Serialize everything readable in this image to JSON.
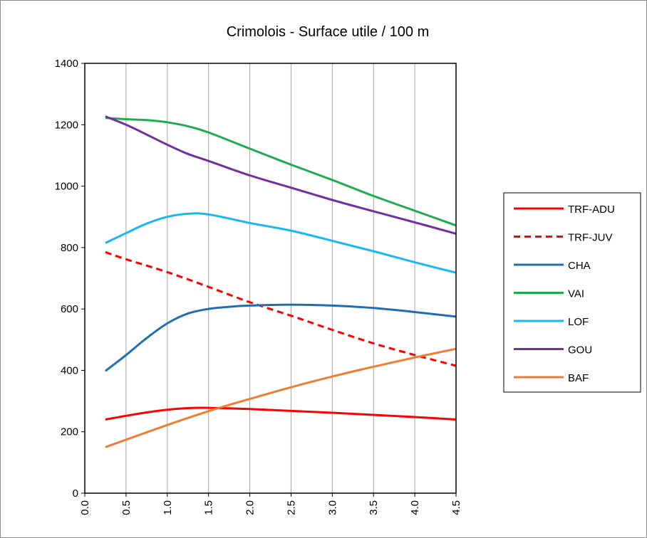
{
  "chart_data": {
    "type": "line",
    "title": "Crimolois - Surface utile / 100 m",
    "xlabel": "",
    "ylabel": "",
    "xlim": [
      0,
      4.5
    ],
    "ylim": [
      0,
      1400
    ],
    "x_ticks": [
      "0.0",
      "0.5",
      "1.0",
      "1.5",
      "2.0",
      "2.5",
      "3.0",
      "3.5",
      "4.0",
      "4.5"
    ],
    "y_ticks": [
      "0",
      "200",
      "400",
      "600",
      "800",
      "1000",
      "1200",
      "1400"
    ],
    "grid": true,
    "legend_position": "right",
    "series": [
      {
        "name": "TRF-ADU",
        "color": "#ff0000",
        "dash": false,
        "x": [
          0.25,
          0.5,
          0.75,
          1.0,
          1.25,
          1.5,
          2.0,
          2.5,
          3.0,
          3.5,
          4.0,
          4.5
        ],
        "y": [
          240,
          252,
          263,
          272,
          277,
          278,
          274,
          268,
          262,
          255,
          248,
          240
        ]
      },
      {
        "name": "TRF-JUV",
        "color": "#ff0000",
        "dash": true,
        "x": [
          0.25,
          0.5,
          1.0,
          1.5,
          2.0,
          2.5,
          3.0,
          3.5,
          4.0,
          4.5
        ],
        "y": [
          785,
          762,
          720,
          672,
          622,
          578,
          532,
          488,
          450,
          415
        ]
      },
      {
        "name": "CHA",
        "color": "#1f6db5",
        "dash": false,
        "x": [
          0.25,
          0.5,
          0.75,
          1.0,
          1.25,
          1.5,
          1.75,
          2.0,
          2.5,
          3.0,
          3.5,
          4.0,
          4.5
        ],
        "y": [
          398,
          450,
          505,
          553,
          585,
          600,
          607,
          611,
          614,
          611,
          603,
          590,
          575
        ]
      },
      {
        "name": "VAI",
        "color": "#1fab50",
        "dash": false,
        "x": [
          0.25,
          0.5,
          0.75,
          1.0,
          1.25,
          1.5,
          2.0,
          2.5,
          3.0,
          3.5,
          4.0,
          4.5
        ],
        "y": [
          1222,
          1218,
          1215,
          1208,
          1195,
          1175,
          1122,
          1070,
          1020,
          968,
          920,
          872
        ]
      },
      {
        "name": "LOF",
        "color": "#19b7ef",
        "dash": false,
        "x": [
          0.25,
          0.5,
          0.75,
          1.0,
          1.25,
          1.5,
          2.0,
          2.5,
          3.0,
          3.5,
          4.0,
          4.5
        ],
        "y": [
          815,
          847,
          878,
          900,
          910,
          908,
          880,
          855,
          822,
          788,
          752,
          718
        ]
      },
      {
        "name": "GOU",
        "color": "#7030a0",
        "dash": false,
        "x": [
          0.25,
          0.5,
          0.75,
          1.0,
          1.25,
          1.5,
          2.0,
          2.5,
          3.0,
          3.5,
          4.0,
          4.5
        ],
        "y": [
          1227,
          1200,
          1168,
          1135,
          1105,
          1082,
          1035,
          995,
          955,
          918,
          882,
          845
        ]
      },
      {
        "name": "BAF",
        "color": "#ed7d31",
        "dash": false,
        "x": [
          0.25,
          1.0,
          1.5,
          2.0,
          2.5,
          3.0,
          3.5,
          4.0,
          4.5
        ],
        "y": [
          150,
          222,
          267,
          307,
          345,
          380,
          412,
          442,
          470
        ]
      }
    ]
  }
}
